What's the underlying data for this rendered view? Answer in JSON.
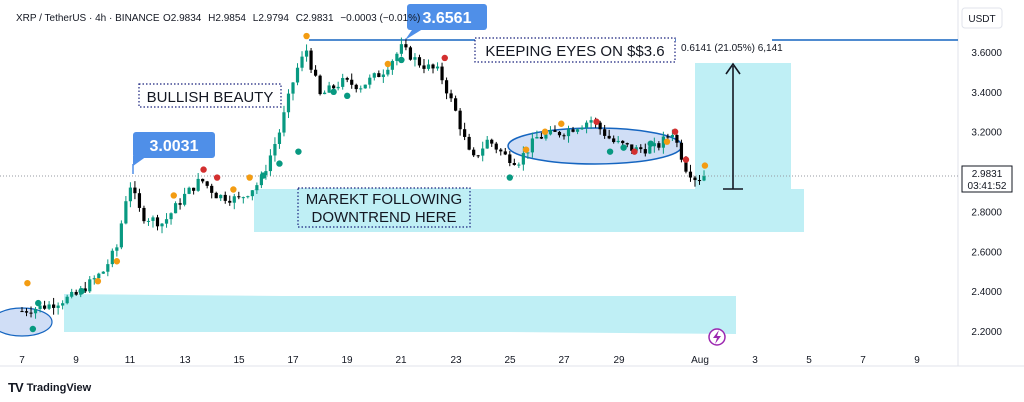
{
  "header": {
    "symbol": "XRP / TetherUS · 4h · BINANCE",
    "open_label": "O",
    "open": "2.9834",
    "high_label": "H",
    "high": "2.9854",
    "low_label": "L",
    "low": "2.9794",
    "close_label": "C",
    "close": "2.9831",
    "change": "−0.0003 (−0.01%)"
  },
  "currency": "USDT",
  "current_price": {
    "value": "2.9831",
    "countdown": "03:41:52",
    "price": 2.9831
  },
  "annotations": {
    "peak_label": "3.6561",
    "breakout_label": "3.0031",
    "bullish": "BULLISH BEAUTY",
    "keeping_eyes": "KEEPING EYES ON $$3.6",
    "measure": "0.6141 (21.05%) 6,141",
    "downtrend_line1": "MAREKT FOLLOWING",
    "downtrend_line2": "DOWNTREND HERE"
  },
  "brand": {
    "name": "TradingView",
    "mark": "TV"
  },
  "colors": {
    "up": "#089981",
    "down": "#000000",
    "accent": "#1565c0",
    "label_bg": "#4f8fe8",
    "zone": "#bfeff5",
    "text": "#131722"
  },
  "chart_data": {
    "type": "candlestick",
    "x_ticks": [
      "7",
      "9",
      "11",
      "13",
      "15",
      "17",
      "19",
      "21",
      "23",
      "25",
      "27",
      "29",
      "Aug",
      "3",
      "5",
      "7",
      "9"
    ],
    "y_ticks": [
      "3.6000",
      "3.4000",
      "3.2000",
      "3.0000",
      "2.8000",
      "2.6000",
      "2.4000",
      "2.2000"
    ],
    "ylim": [
      2.08,
      3.86
    ],
    "resistance_level": 3.6561,
    "breakout_level": 3.0031,
    "measured_move": {
      "from": 2.93,
      "to": 3.55,
      "change": 0.6141,
      "percent": 21.05
    },
    "waypoints": [
      [
        7.0,
        2.3
      ],
      [
        8.0,
        2.33
      ],
      [
        9.0,
        2.38
      ],
      [
        10.0,
        2.5
      ],
      [
        10.5,
        2.62
      ],
      [
        10.95,
        2.95
      ],
      [
        11.4,
        2.78
      ],
      [
        12.2,
        2.74
      ],
      [
        13.0,
        2.88
      ],
      [
        13.6,
        2.96
      ],
      [
        14.2,
        2.88
      ],
      [
        15.0,
        2.86
      ],
      [
        15.8,
        2.95
      ],
      [
        16.5,
        3.2
      ],
      [
        17.1,
        3.5
      ],
      [
        17.5,
        3.61
      ],
      [
        18.0,
        3.38
      ],
      [
        18.8,
        3.45
      ],
      [
        19.5,
        3.43
      ],
      [
        20.3,
        3.5
      ],
      [
        21.0,
        3.62
      ],
      [
        21.7,
        3.54
      ],
      [
        22.4,
        3.5
      ],
      [
        23.0,
        3.3
      ],
      [
        23.6,
        3.05
      ],
      [
        24.2,
        3.16
      ],
      [
        24.8,
        3.08
      ],
      [
        25.3,
        3.05
      ],
      [
        26.0,
        3.17
      ],
      [
        27.0,
        3.2
      ],
      [
        28.0,
        3.26
      ],
      [
        28.8,
        3.15
      ],
      [
        29.6,
        3.11
      ],
      [
        30.4,
        3.12
      ],
      [
        31.0,
        3.2
      ],
      [
        31.5,
        3.02
      ],
      [
        31.9,
        2.96
      ],
      [
        32.2,
        2.985
      ]
    ],
    "markers": [
      [
        7.2,
        2.44,
        "#f39c12"
      ],
      [
        7.6,
        2.34,
        "#089981"
      ],
      [
        9.2,
        2.4,
        "#089981"
      ],
      [
        9.8,
        2.45,
        "#f39c12"
      ],
      [
        10.5,
        2.55,
        "#f39c12"
      ],
      [
        12.6,
        2.88,
        "#f39c12"
      ],
      [
        13.7,
        3.01,
        "#d32f2f"
      ],
      [
        14.2,
        2.97,
        "#d32f2f"
      ],
      [
        14.8,
        2.91,
        "#f39c12"
      ],
      [
        15.4,
        2.97,
        "#f39c12"
      ],
      [
        15.9,
        2.98,
        "#089981"
      ],
      [
        16.5,
        3.04,
        "#089981"
      ],
      [
        17.2,
        3.1,
        "#089981"
      ],
      [
        17.5,
        3.68,
        "#f39c12"
      ],
      [
        18.5,
        3.4,
        "#089981"
      ],
      [
        19.0,
        3.38,
        "#089981"
      ],
      [
        20.5,
        3.54,
        "#f39c12"
      ],
      [
        21.0,
        3.56,
        "#089981"
      ],
      [
        22.6,
        3.57,
        "#d32f2f"
      ],
      [
        25.0,
        2.97,
        "#089981"
      ],
      [
        25.6,
        3.11,
        "#f39c12"
      ],
      [
        26.3,
        3.2,
        "#f39c12"
      ],
      [
        26.9,
        3.24,
        "#f39c12"
      ],
      [
        28.2,
        3.25,
        "#d32f2f"
      ],
      [
        28.7,
        3.1,
        "#089981"
      ],
      [
        29.2,
        3.12,
        "#089981"
      ],
      [
        29.6,
        3.1,
        "#d32f2f"
      ],
      [
        30.2,
        3.14,
        "#089981"
      ],
      [
        30.8,
        3.15,
        "#f39c12"
      ],
      [
        31.1,
        3.2,
        "#d32f2f"
      ],
      [
        31.5,
        3.06,
        "#d32f2f"
      ],
      [
        32.2,
        3.03,
        "#f39c12"
      ],
      [
        7.4,
        2.21,
        "#089981"
      ]
    ]
  }
}
